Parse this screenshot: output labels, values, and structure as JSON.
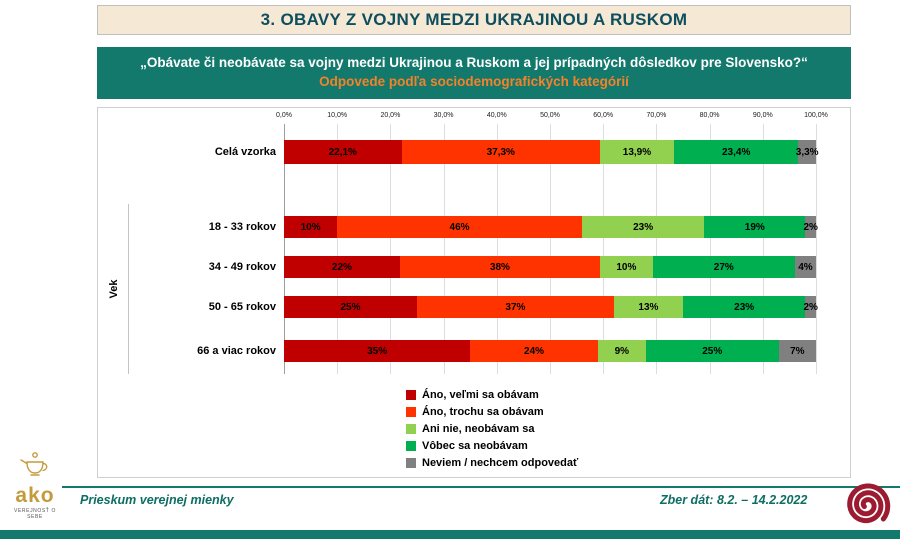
{
  "slide": {
    "title": "3. OBAVY Z VOJNY MEDZI UKRAJINOU A RUSKOM",
    "question": "„Obávate či neobávate sa vojny medzi Ukrajinou a Ruskom a jej prípadných dôsledkov pre Slovensko?“",
    "subtitle": "Odpovede podľa sociodemografických kategórií"
  },
  "chart_data": {
    "type": "bar",
    "variant": "horizontal-stacked",
    "unit": "%",
    "xlim": [
      0,
      100
    ],
    "grid": true,
    "legend_position": "bottom",
    "axis_ticks": [
      "0,0%",
      "10,0%",
      "20,0%",
      "30,0%",
      "40,0%",
      "50,0%",
      "60,0%",
      "70,0%",
      "80,0%",
      "90,0%",
      "100,0%"
    ],
    "group_label": "Vek",
    "rows": [
      {
        "category": "Celá vzorka",
        "group": "",
        "values": [
          22.1,
          37.3,
          13.9,
          23.4,
          3.3
        ],
        "value_labels": [
          "22,1%",
          "37,3%",
          "13,9%",
          "23,4%",
          "3,3%"
        ]
      },
      {
        "category": "18 - 33 rokov",
        "group": "Vek",
        "values": [
          10,
          46,
          23,
          19,
          2
        ],
        "value_labels": [
          "10%",
          "46%",
          "23%",
          "19%",
          "2%"
        ]
      },
      {
        "category": "34 - 49 rokov",
        "group": "Vek",
        "values": [
          22,
          38,
          10,
          27,
          4
        ],
        "value_labels": [
          "22%",
          "38%",
          "10%",
          "27%",
          "4%"
        ]
      },
      {
        "category": "50 - 65 rokov",
        "group": "Vek",
        "values": [
          25,
          37,
          13,
          23,
          2
        ],
        "value_labels": [
          "25%",
          "37%",
          "13%",
          "23%",
          "2%"
        ]
      },
      {
        "category": "66 a viac rokov",
        "group": "Vek",
        "values": [
          35,
          24,
          9,
          25,
          7
        ],
        "value_labels": [
          "35%",
          "24%",
          "9%",
          "25%",
          "7%"
        ]
      }
    ],
    "legend": [
      {
        "label": "Áno, veľmi sa obávam",
        "color": "#C00000"
      },
      {
        "label": "Áno, trochu sa obávam",
        "color": "#FF3300"
      },
      {
        "label": "Ani nie, neobávam sa",
        "color": "#92D050"
      },
      {
        "label": "Vôbec sa neobávam",
        "color": "#00B050"
      },
      {
        "label": "Neviem / nechcem odpovedať",
        "color": "#808080"
      }
    ]
  },
  "footer": {
    "left_text": "Prieskum verejnej mienky",
    "right_text": "Zber dát: 8.2. – 14.2.2022",
    "logo_text": "ako",
    "logo_tagline": "VEREJNOSŤ O SEBE"
  },
  "colors": {
    "banner_teal": "#13796C",
    "title_text": "#0D4F5E",
    "subtitle_orange": "#F58229",
    "footer_teal": "#0E6E63",
    "spiral_red": "#9C1B30",
    "logo_gold": "#C49B3C",
    "title_bar_bg": "#F5E8D5"
  }
}
